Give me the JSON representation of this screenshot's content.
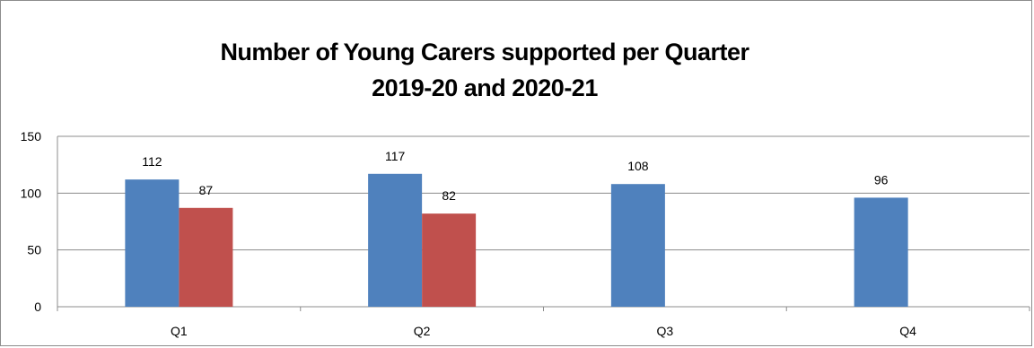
{
  "chart_data": {
    "type": "bar",
    "title": [
      "Number of Young Carers supported per Quarter",
      "2019-20 and 2020-21"
    ],
    "categories": [
      "Q1",
      "Q2",
      "Q3",
      "Q4"
    ],
    "series": [
      {
        "values": [
          112,
          117,
          108,
          96
        ],
        "color": "#4f81bd"
      },
      {
        "values": [
          87,
          82,
          null,
          null
        ],
        "color": "#c0504d"
      }
    ],
    "ylim": [
      0,
      150
    ],
    "yticks": [
      0,
      50,
      100,
      150
    ],
    "grid": true,
    "legend": "none"
  }
}
